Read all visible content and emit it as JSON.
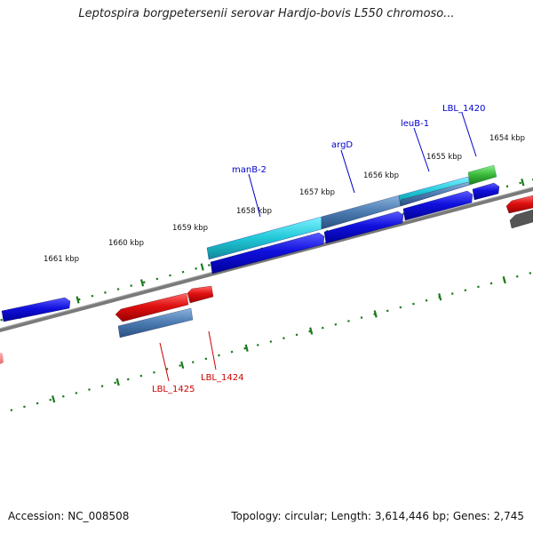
{
  "map": {
    "title": "Leptospira borgpetersenii serovar Hardjo-bovis L550 chromoso...",
    "accession": "Accession: NC_008508",
    "summary": "Topology: circular; Length: 3,614,446 bp; Genes: 2,745"
  },
  "ticks": {
    "labels": [
      "1654 kbp",
      "1655 kbp",
      "1656 kbp",
      "1657 kbp",
      "1658 kbp",
      "1659 kbp",
      "1660 kbp",
      "1661 kbp"
    ],
    "color": "#1a7a1a"
  },
  "genes": {
    "forward_labels": [
      "LBL_1420",
      "leuB-1",
      "argD",
      "manB-2"
    ],
    "reverse_labels": [
      "LBL_1424",
      "LBL_1425"
    ],
    "forward_label_color": "#0000cc",
    "reverse_label_color": "#cc0000"
  },
  "colors": {
    "cds_blue": "#1010dd",
    "cds_red": "#e01010",
    "cyan": "#20c8d8",
    "steel": "#4a7ab0",
    "green": "#38b838",
    "backbone": "#808080"
  }
}
